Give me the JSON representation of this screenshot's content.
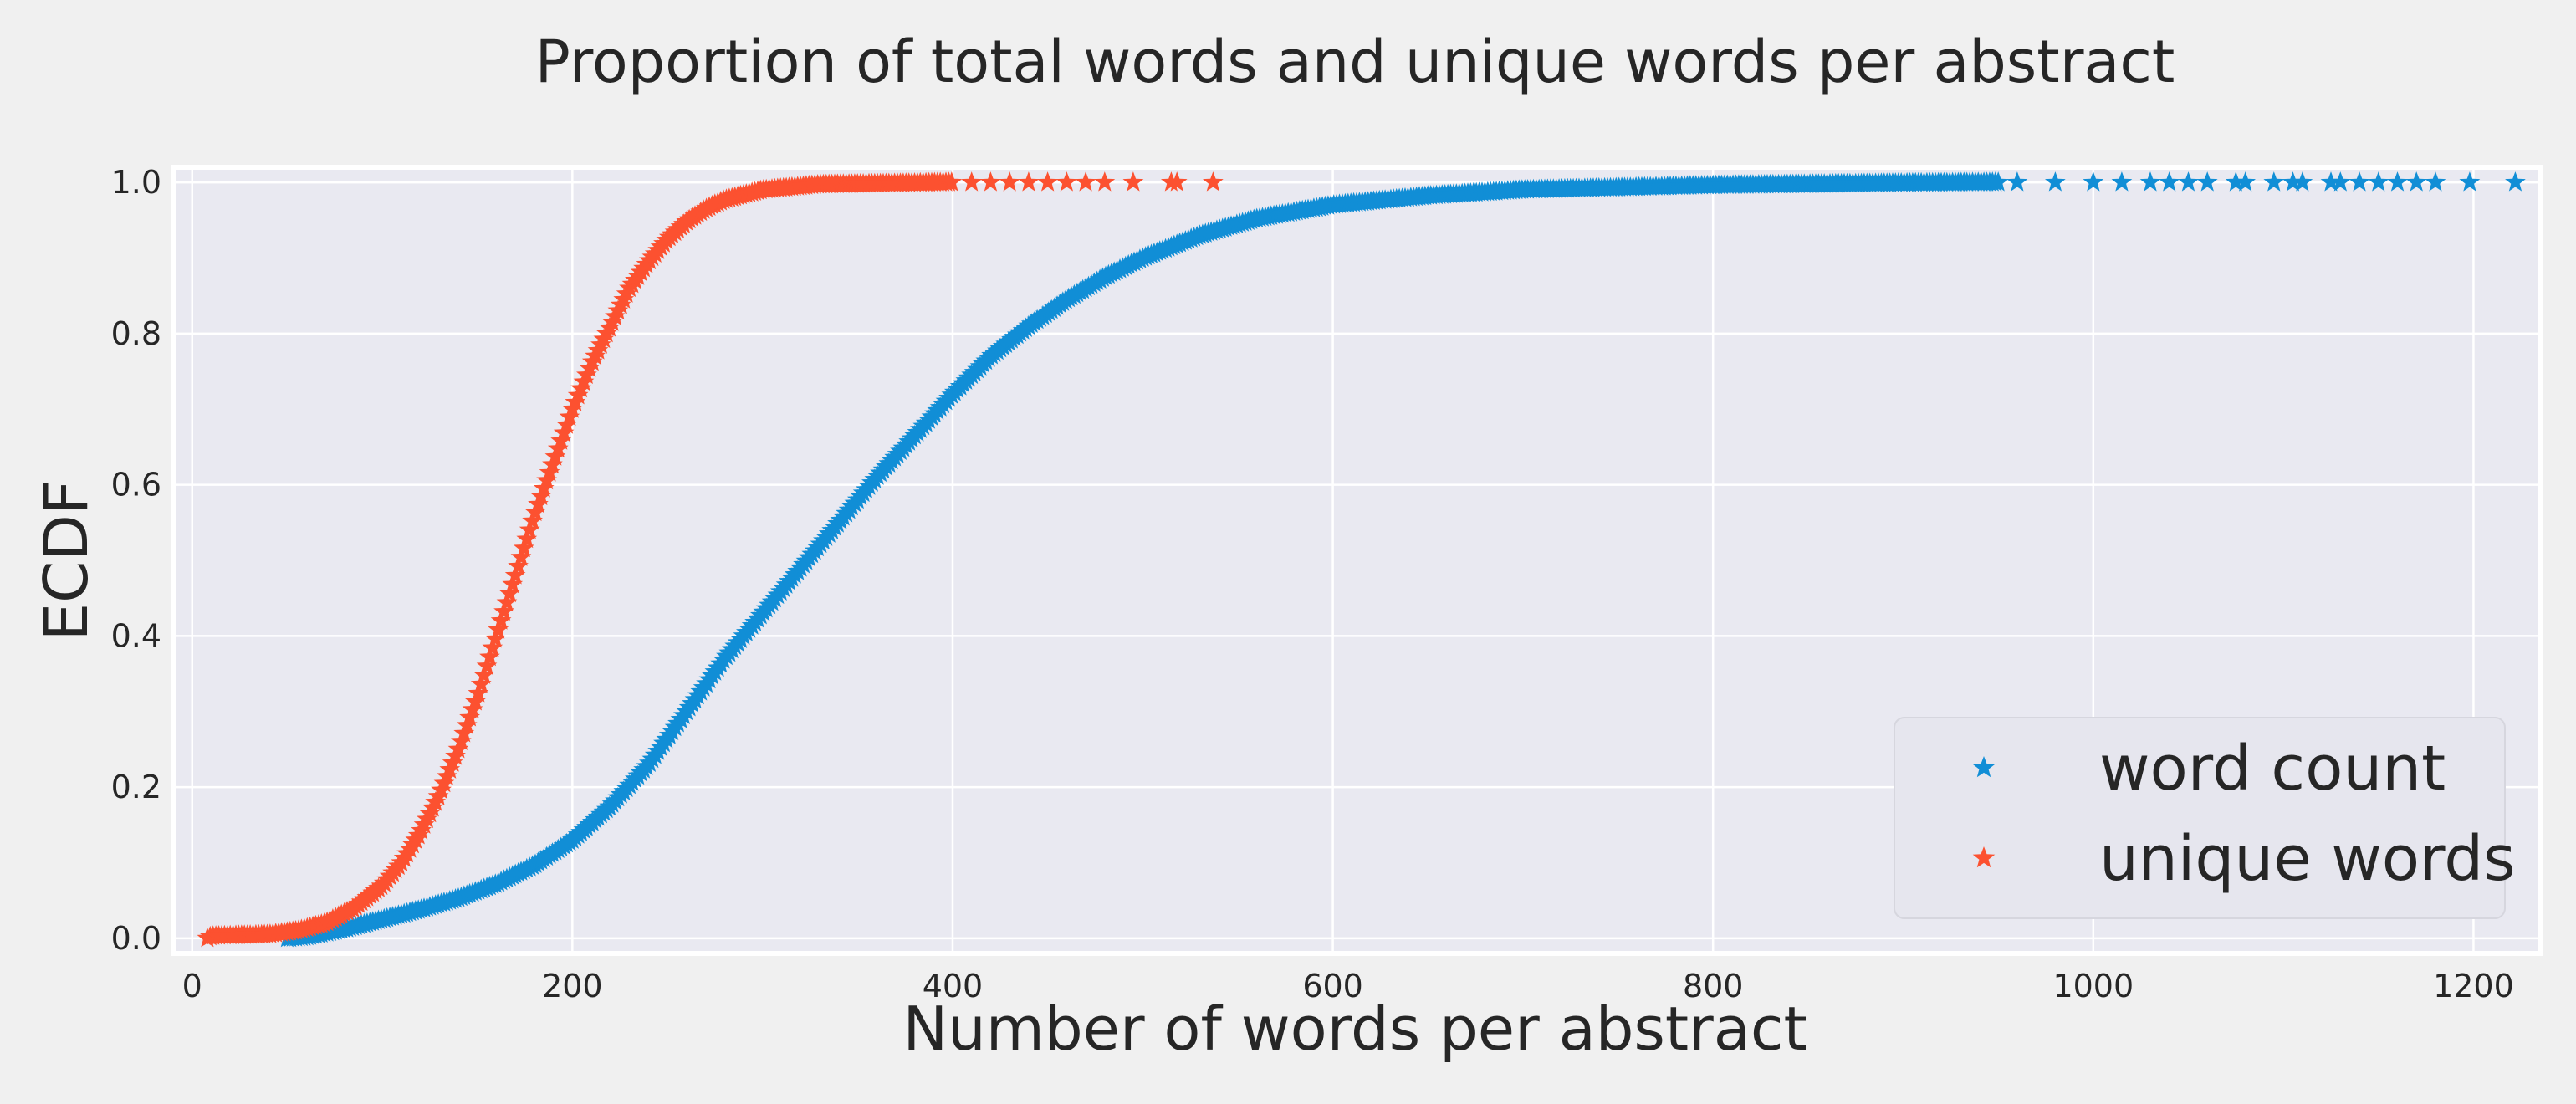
{
  "chart_data": {
    "type": "scatter",
    "title": "Proportion of total words and unique words per abstract",
    "xlabel": "Number of words per abstract",
    "ylabel": "ECDF",
    "xlim": [
      -10,
      1235
    ],
    "ylim": [
      -0.02,
      1.02
    ],
    "xticks": [
      0,
      200,
      400,
      600,
      800,
      1000,
      1200
    ],
    "yticks": [
      0.0,
      0.2,
      0.4,
      0.6,
      0.8,
      1.0
    ],
    "grid": true,
    "legend_position": "lower right",
    "marker": "star",
    "series": [
      {
        "name": "word count",
        "color": "#118ed6",
        "ecdf": [
          [
            50,
            0.0
          ],
          [
            60,
            0.002
          ],
          [
            80,
            0.012
          ],
          [
            100,
            0.025
          ],
          [
            120,
            0.038
          ],
          [
            140,
            0.053
          ],
          [
            160,
            0.072
          ],
          [
            180,
            0.097
          ],
          [
            200,
            0.13
          ],
          [
            220,
            0.175
          ],
          [
            240,
            0.23
          ],
          [
            260,
            0.3
          ],
          [
            280,
            0.37
          ],
          [
            300,
            0.43
          ],
          [
            320,
            0.49
          ],
          [
            340,
            0.55
          ],
          [
            360,
            0.61
          ],
          [
            380,
            0.665
          ],
          [
            400,
            0.72
          ],
          [
            420,
            0.77
          ],
          [
            440,
            0.81
          ],
          [
            460,
            0.845
          ],
          [
            480,
            0.875
          ],
          [
            500,
            0.9
          ],
          [
            530,
            0.93
          ],
          [
            560,
            0.952
          ],
          [
            600,
            0.97
          ],
          [
            650,
            0.982
          ],
          [
            700,
            0.99
          ],
          [
            800,
            0.996
          ],
          [
            900,
            0.999
          ],
          [
            950,
            1.0
          ]
        ],
        "tail_x": [
          960,
          980,
          1000,
          1015,
          1030,
          1040,
          1050,
          1060,
          1075,
          1080,
          1095,
          1105,
          1110,
          1125,
          1130,
          1140,
          1150,
          1160,
          1170,
          1180,
          1198,
          1222
        ]
      },
      {
        "name": "unique words",
        "color": "#fc5130",
        "ecdf": [
          [
            8,
            0.0
          ],
          [
            10,
            0.003
          ],
          [
            40,
            0.005
          ],
          [
            55,
            0.01
          ],
          [
            70,
            0.02
          ],
          [
            85,
            0.04
          ],
          [
            100,
            0.07
          ],
          [
            110,
            0.1
          ],
          [
            120,
            0.14
          ],
          [
            130,
            0.19
          ],
          [
            140,
            0.25
          ],
          [
            150,
            0.32
          ],
          [
            160,
            0.4
          ],
          [
            170,
            0.48
          ],
          [
            180,
            0.56
          ],
          [
            190,
            0.63
          ],
          [
            200,
            0.7
          ],
          [
            210,
            0.76
          ],
          [
            220,
            0.81
          ],
          [
            230,
            0.86
          ],
          [
            240,
            0.895
          ],
          [
            250,
            0.925
          ],
          [
            260,
            0.948
          ],
          [
            270,
            0.965
          ],
          [
            280,
            0.977
          ],
          [
            300,
            0.99
          ],
          [
            330,
            0.997
          ],
          [
            380,
            0.999
          ],
          [
            400,
            1.0
          ]
        ],
        "tail_x": [
          410,
          420,
          430,
          440,
          450,
          460,
          470,
          480,
          495,
          515,
          518,
          537
        ]
      }
    ]
  }
}
